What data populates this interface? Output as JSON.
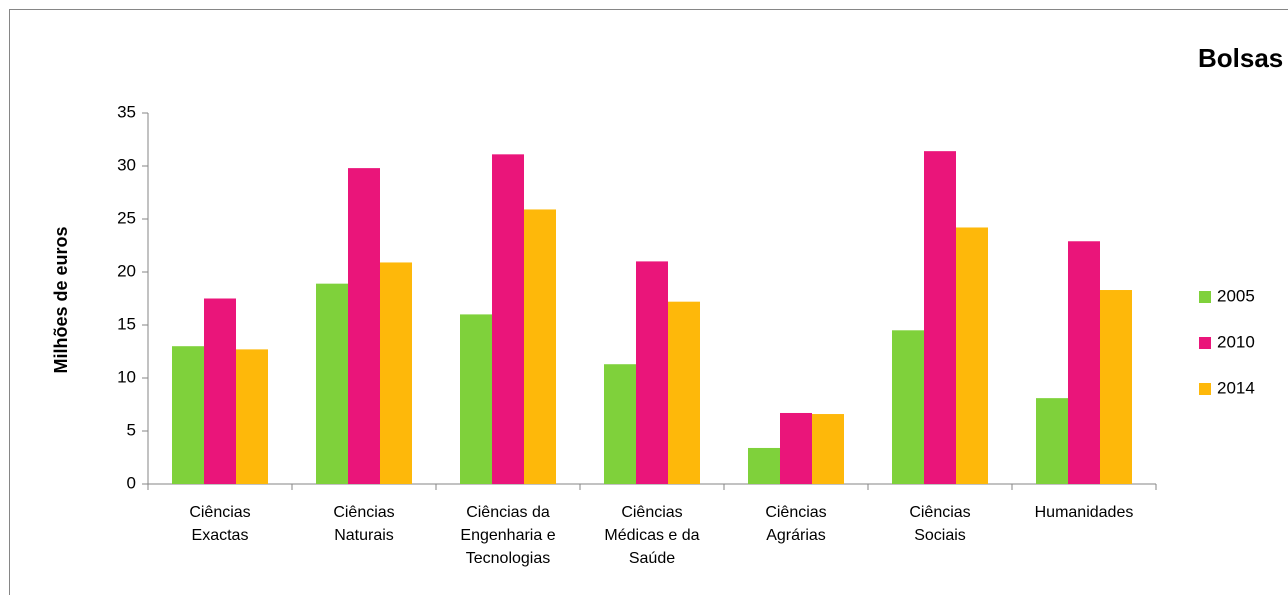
{
  "chart_data": {
    "type": "bar",
    "title": "Bolsas",
    "y_label": "Milhões de euros",
    "categories": [
      "Ciências\nExactas",
      "Ciências\nNaturais",
      "Ciências da\nEngenharia e\nTecnologias",
      "Ciências\nMédicas e da\nSaúde",
      "Ciências\nAgrárias",
      "Ciências\nSociais",
      "Humanidades"
    ],
    "series": [
      {
        "name": "2005",
        "color": "#7fd13b",
        "values": [
          13.0,
          18.9,
          16.0,
          11.3,
          3.4,
          14.5,
          8.1
        ]
      },
      {
        "name": "2010",
        "color": "#ea157a",
        "values": [
          17.5,
          29.8,
          31.1,
          21.0,
          6.7,
          31.4,
          22.9
        ]
      },
      {
        "name": "2014",
        "color": "#feb80a",
        "values": [
          12.7,
          20.9,
          25.9,
          17.2,
          6.6,
          24.2,
          18.3
        ]
      }
    ],
    "ylim": [
      0,
      35
    ],
    "yticks": [
      0,
      5,
      10,
      15,
      20,
      25,
      30,
      35
    ],
    "legend": "right"
  }
}
